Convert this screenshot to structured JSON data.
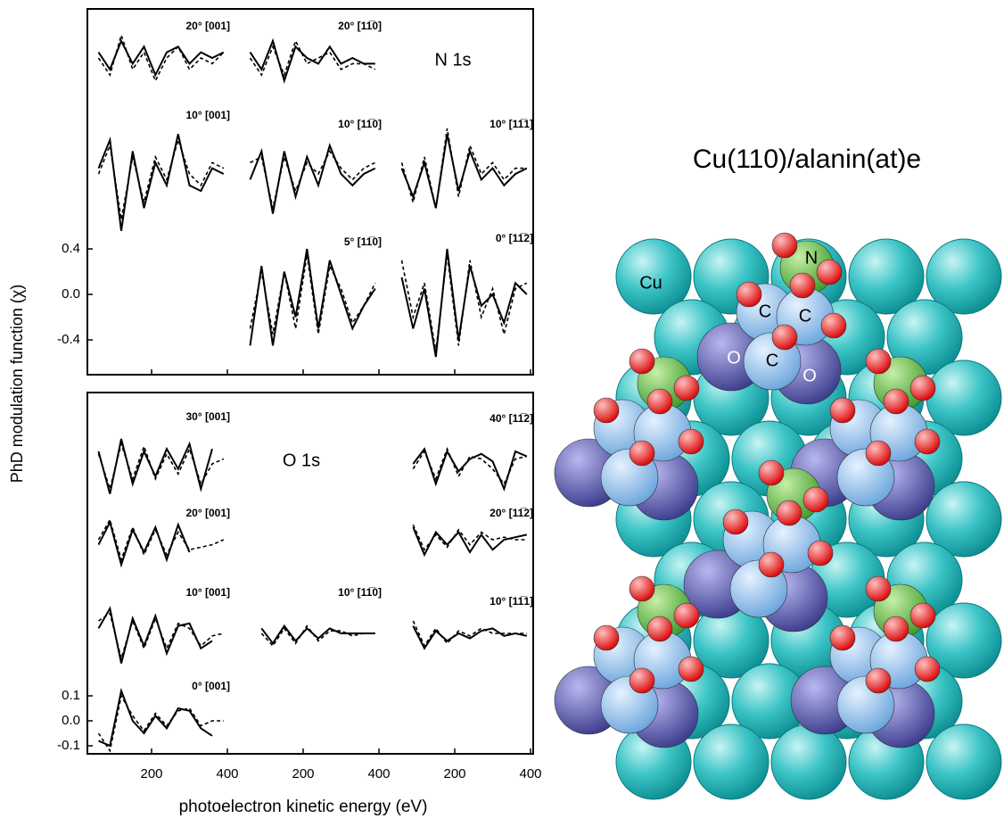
{
  "figure": {
    "ylabel": "PhD modulation function (χ)",
    "xlabel": "photoelectron kinetic energy (eV)",
    "xlim": [
      50,
      400
    ],
    "xticks": [
      200,
      400
    ],
    "n_label": "N 1s",
    "o_label": "O 1s"
  },
  "model": {
    "title": "Cu(110)/alanin(at)e",
    "labels": [
      "Cu",
      "N",
      "C",
      "C",
      "O",
      "C",
      "O"
    ]
  },
  "chart_data": [
    {
      "type": "line",
      "title": "20° [001]",
      "ylim": [
        -0.5,
        0.5
      ],
      "x": [
        60,
        90,
        120,
        150,
        180,
        210,
        240,
        270,
        300,
        330,
        360,
        390
      ],
      "series": [
        {
          "style": "solid",
          "values": [
            0.05,
            -0.1,
            0.15,
            -0.05,
            0.1,
            -0.15,
            0.05,
            0.1,
            -0.05,
            0.05,
            0.0,
            0.05
          ]
        },
        {
          "style": "dashed",
          "values": [
            0.0,
            -0.15,
            0.2,
            -0.1,
            0.05,
            -0.2,
            0.0,
            0.1,
            -0.1,
            0.0,
            -0.05,
            0.05
          ]
        }
      ]
    },
    {
      "type": "line",
      "title": "20° [11̅0]",
      "ylim": [
        -0.5,
        0.5
      ],
      "x": [
        60,
        90,
        120,
        150,
        180,
        210,
        240,
        270,
        300,
        330,
        360,
        390
      ],
      "series": [
        {
          "style": "solid",
          "values": [
            0.05,
            -0.1,
            0.15,
            -0.2,
            0.1,
            0.0,
            -0.05,
            0.1,
            -0.05,
            0.0,
            -0.05,
            -0.05
          ]
        },
        {
          "style": "dashed",
          "values": [
            0.0,
            -0.15,
            0.1,
            -0.15,
            0.15,
            -0.05,
            0.0,
            0.05,
            -0.1,
            -0.05,
            -0.05,
            -0.1
          ]
        }
      ]
    },
    {
      "type": "line",
      "title": "10° [001]",
      "ylim": [
        -0.5,
        0.5
      ],
      "x": [
        60,
        90,
        120,
        150,
        180,
        210,
        240,
        270,
        300,
        330,
        360,
        390
      ],
      "series": [
        {
          "style": "solid",
          "values": [
            0.05,
            0.3,
            -0.5,
            0.2,
            -0.3,
            0.1,
            -0.1,
            0.35,
            -0.1,
            -0.15,
            0.05,
            0.0
          ]
        },
        {
          "style": "dashed",
          "values": [
            0.0,
            0.25,
            -0.4,
            0.15,
            -0.25,
            0.15,
            -0.05,
            0.3,
            0.0,
            -0.1,
            0.1,
            0.05
          ]
        }
      ]
    },
    {
      "type": "line",
      "title": "10° [11̅0]",
      "ylim": [
        -0.5,
        0.5
      ],
      "x": [
        60,
        90,
        120,
        150,
        180,
        210,
        240,
        270,
        300,
        330,
        360,
        390
      ],
      "series": [
        {
          "style": "solid",
          "values": [
            -0.05,
            0.2,
            -0.35,
            0.2,
            -0.2,
            0.15,
            -0.1,
            0.25,
            0.0,
            -0.1,
            0.0,
            0.05
          ]
        },
        {
          "style": "dashed",
          "values": [
            0.1,
            0.15,
            -0.3,
            0.15,
            -0.15,
            0.1,
            0.0,
            0.2,
            0.05,
            -0.05,
            0.05,
            0.1
          ]
        }
      ]
    },
    {
      "type": "line",
      "title": "10° [11̅1]",
      "ylim": [
        -0.5,
        0.5
      ],
      "x": [
        60,
        90,
        120,
        150,
        180,
        210,
        240,
        270,
        300,
        330,
        360,
        390
      ],
      "series": [
        {
          "style": "solid",
          "values": [
            0.05,
            -0.2,
            0.1,
            -0.3,
            0.35,
            -0.15,
            0.2,
            -0.05,
            0.05,
            -0.1,
            0.0,
            0.05
          ]
        },
        {
          "style": "dashed",
          "values": [
            0.1,
            -0.25,
            0.15,
            -0.3,
            0.4,
            -0.2,
            0.25,
            0.0,
            0.1,
            -0.05,
            0.05,
            0.05
          ]
        }
      ]
    },
    {
      "type": "line",
      "title": "5° [11̅0]",
      "ylim": [
        -0.5,
        0.5
      ],
      "yticks": [
        {
          "value": 0.4,
          "label": "0.4"
        },
        {
          "value": 0,
          "label": "0.0"
        },
        {
          "value": -0.4,
          "label": "-0.4"
        }
      ],
      "x": [
        60,
        90,
        120,
        150,
        180,
        210,
        240,
        270,
        300,
        330,
        360,
        390
      ],
      "series": [
        {
          "style": "solid",
          "values": [
            -0.45,
            0.25,
            -0.45,
            0.2,
            -0.2,
            0.4,
            -0.3,
            0.3,
            0.0,
            -0.3,
            -0.1,
            0.05
          ]
        },
        {
          "style": "dashed",
          "values": [
            -0.3,
            0.2,
            -0.35,
            0.2,
            -0.3,
            0.35,
            -0.35,
            0.25,
            0.05,
            -0.25,
            -0.1,
            0.1
          ]
        }
      ]
    },
    {
      "type": "line",
      "title": "0° [11̅2]",
      "ylim": [
        -0.5,
        0.5
      ],
      "x": [
        60,
        90,
        120,
        150,
        180,
        210,
        240,
        270,
        300,
        330,
        360,
        390
      ],
      "series": [
        {
          "style": "solid",
          "values": [
            0.15,
            -0.3,
            0.05,
            -0.55,
            0.4,
            -0.4,
            0.25,
            -0.1,
            0.0,
            -0.25,
            0.1,
            0.0
          ]
        },
        {
          "style": "dashed",
          "values": [
            0.3,
            -0.2,
            0.1,
            -0.5,
            0.35,
            -0.45,
            0.3,
            -0.2,
            0.05,
            -0.35,
            0.05,
            0.1
          ]
        }
      ]
    },
    {
      "type": "line",
      "title": "30° [001]",
      "ylim": [
        -0.15,
        0.15
      ],
      "x": [
        60,
        90,
        120,
        150,
        180,
        210,
        240,
        270,
        300,
        330,
        360,
        390
      ],
      "series": [
        {
          "style": "solid",
          "values": [
            0.05,
            -0.12,
            0.1,
            -0.08,
            0.05,
            -0.05,
            0.06,
            -0.02,
            0.08,
            -0.1,
            0.06,
            null
          ]
        },
        {
          "style": "dashed",
          "values": [
            0.04,
            -0.1,
            0.08,
            -0.06,
            0.07,
            -0.06,
            0.04,
            -0.04,
            0.06,
            -0.08,
            0.0,
            0.02
          ]
        }
      ]
    },
    {
      "type": "line",
      "title": "40° [11̅2]",
      "ylim": [
        -0.15,
        0.15
      ],
      "x": [
        60,
        90,
        120,
        150,
        180,
        210,
        240,
        270,
        300,
        330,
        360,
        390
      ],
      "series": [
        {
          "style": "solid",
          "values": [
            null,
            0.0,
            0.06,
            -0.08,
            0.05,
            -0.03,
            0.02,
            0.04,
            0.01,
            -0.1,
            0.05,
            0.03
          ]
        },
        {
          "style": "dashed",
          "values": [
            null,
            -0.02,
            0.05,
            -0.06,
            0.06,
            -0.05,
            0.03,
            0.02,
            -0.02,
            -0.08,
            0.02,
            0.03
          ]
        }
      ]
    },
    {
      "type": "line",
      "title": "20° [001]",
      "ylim": [
        -0.15,
        0.15
      ],
      "x": [
        60,
        90,
        120,
        150,
        180,
        210,
        240,
        270,
        300,
        330,
        360,
        390
      ],
      "series": [
        {
          "style": "solid",
          "values": [
            -0.02,
            0.07,
            -0.1,
            0.04,
            -0.05,
            0.05,
            -0.08,
            0.06,
            -0.05,
            null,
            null,
            null
          ]
        },
        {
          "style": "dashed",
          "values": [
            0.0,
            0.08,
            -0.08,
            0.05,
            -0.06,
            0.04,
            -0.06,
            0.03,
            -0.04,
            -0.03,
            -0.02,
            0.0
          ]
        }
      ]
    },
    {
      "type": "line",
      "title": "20° [11̅2]",
      "ylim": [
        -0.15,
        0.15
      ],
      "x": [
        60,
        90,
        120,
        150,
        180,
        210,
        240,
        270,
        300,
        330,
        360,
        390
      ],
      "series": [
        {
          "style": "solid",
          "values": [
            null,
            0.05,
            -0.06,
            0.03,
            -0.02,
            0.03,
            -0.05,
            0.02,
            -0.04,
            0.0,
            0.01,
            0.02
          ]
        },
        {
          "style": "dashed",
          "values": [
            null,
            0.06,
            -0.04,
            0.02,
            -0.03,
            0.04,
            -0.02,
            0.03,
            0.0,
            0.01,
            0.0,
            0.0
          ]
        }
      ]
    },
    {
      "type": "line",
      "title": "10° [001]",
      "ylim": [
        -0.15,
        0.15
      ],
      "x": [
        60,
        90,
        120,
        150,
        180,
        210,
        240,
        270,
        300,
        330,
        360,
        390
      ],
      "series": [
        {
          "style": "solid",
          "values": [
            0.02,
            0.1,
            -0.12,
            0.06,
            -0.05,
            0.07,
            -0.08,
            0.03,
            0.04,
            -0.06,
            -0.03,
            null
          ]
        },
        {
          "style": "dashed",
          "values": [
            0.05,
            0.08,
            -0.1,
            0.05,
            -0.06,
            0.06,
            -0.06,
            0.04,
            0.02,
            -0.05,
            -0.01,
            0.0
          ]
        }
      ]
    },
    {
      "type": "line",
      "title": "10° [11̅0]",
      "ylim": [
        -0.15,
        0.15
      ],
      "x": [
        60,
        90,
        120,
        150,
        180,
        210,
        240,
        270,
        300,
        330,
        360,
        390
      ],
      "series": [
        {
          "style": "solid",
          "values": [
            null,
            0.02,
            -0.04,
            0.03,
            -0.03,
            0.02,
            -0.02,
            0.02,
            0.0,
            0.0,
            0.0,
            0.0
          ]
        },
        {
          "style": "dashed",
          "values": [
            null,
            0.0,
            -0.05,
            0.02,
            -0.04,
            0.03,
            -0.03,
            0.01,
            0.01,
            -0.01,
            0.0,
            0.0
          ]
        }
      ]
    },
    {
      "type": "line",
      "title": "10° [11̅1]",
      "ylim": [
        -0.15,
        0.15
      ],
      "x": [
        60,
        90,
        120,
        150,
        180,
        210,
        240,
        270,
        300,
        330,
        360,
        390
      ],
      "series": [
        {
          "style": "solid",
          "values": [
            null,
            0.03,
            -0.06,
            0.01,
            -0.03,
            0.0,
            -0.02,
            0.01,
            0.02,
            -0.01,
            0.0,
            -0.01
          ]
        },
        {
          "style": "dashed",
          "values": [
            null,
            0.05,
            -0.05,
            0.02,
            -0.04,
            0.01,
            -0.01,
            0.02,
            0.0,
            0.0,
            0.0,
            0.0
          ]
        }
      ]
    },
    {
      "type": "line",
      "title": "0° [001]",
      "ylim": [
        -0.15,
        0.15
      ],
      "yticks": [
        0.1,
        {
          "value": 0,
          "label": "0.0"
        },
        -0.1
      ],
      "x": [
        60,
        90,
        120,
        150,
        180,
        210,
        240,
        270,
        300,
        330,
        360,
        390
      ],
      "series": [
        {
          "style": "solid",
          "values": [
            -0.08,
            -0.1,
            0.12,
            0.0,
            -0.05,
            0.02,
            -0.03,
            0.05,
            0.04,
            -0.03,
            -0.06,
            null
          ]
        },
        {
          "style": "dashed",
          "values": [
            -0.05,
            -0.12,
            0.1,
            0.02,
            -0.04,
            0.03,
            -0.02,
            0.04,
            0.05,
            -0.02,
            0.0,
            0.0
          ]
        }
      ]
    }
  ]
}
